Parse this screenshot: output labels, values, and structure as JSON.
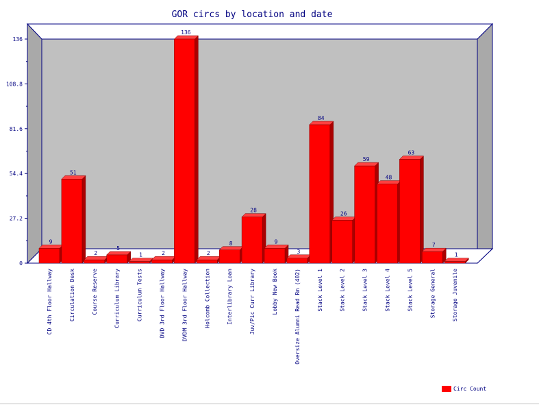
{
  "chart_data": {
    "type": "bar",
    "title": "GOR circs by location and date",
    "xlabel": "",
    "ylabel": "",
    "ylim": [
      0,
      136
    ],
    "yticks": [
      "0",
      "27.2",
      "54.4",
      "81.6",
      "108.8",
      "136"
    ],
    "grid": false,
    "legend_position": "bottom-right",
    "categories": [
      "CD 4th Floor Hallway",
      "Circulation Desk",
      "Course Reserve",
      "Curriculum Library",
      "Curriculum Tests",
      "DVD 3rd Floor Hallway",
      "DVDM 3rd Floor Hallway",
      "Holcomb Collection",
      "Interlibrary Loan",
      "Juv/Pic Curr Library",
      "Lobby New Book",
      "Oversize Alumni Read Rm (402)",
      "Stack Level 1",
      "Stack Level 2",
      "Stack Level 3",
      "Stack Level 4",
      "Stack Level 5",
      "Storage General",
      "Storage Juvenile"
    ],
    "series": [
      {
        "name": "Circ Count",
        "values": [
          9,
          51,
          2,
          5,
          1,
          2,
          136,
          2,
          8,
          28,
          9,
          3,
          84,
          26,
          59,
          48,
          63,
          7,
          1
        ]
      }
    ],
    "colors": {
      "bar_front": "#ff0000",
      "bar_top": "#ff4040",
      "bar_side": "#aa0000",
      "plot_back": "#c0c0c0",
      "plot_side": "#a8a8a8",
      "axis": "#000080"
    }
  }
}
